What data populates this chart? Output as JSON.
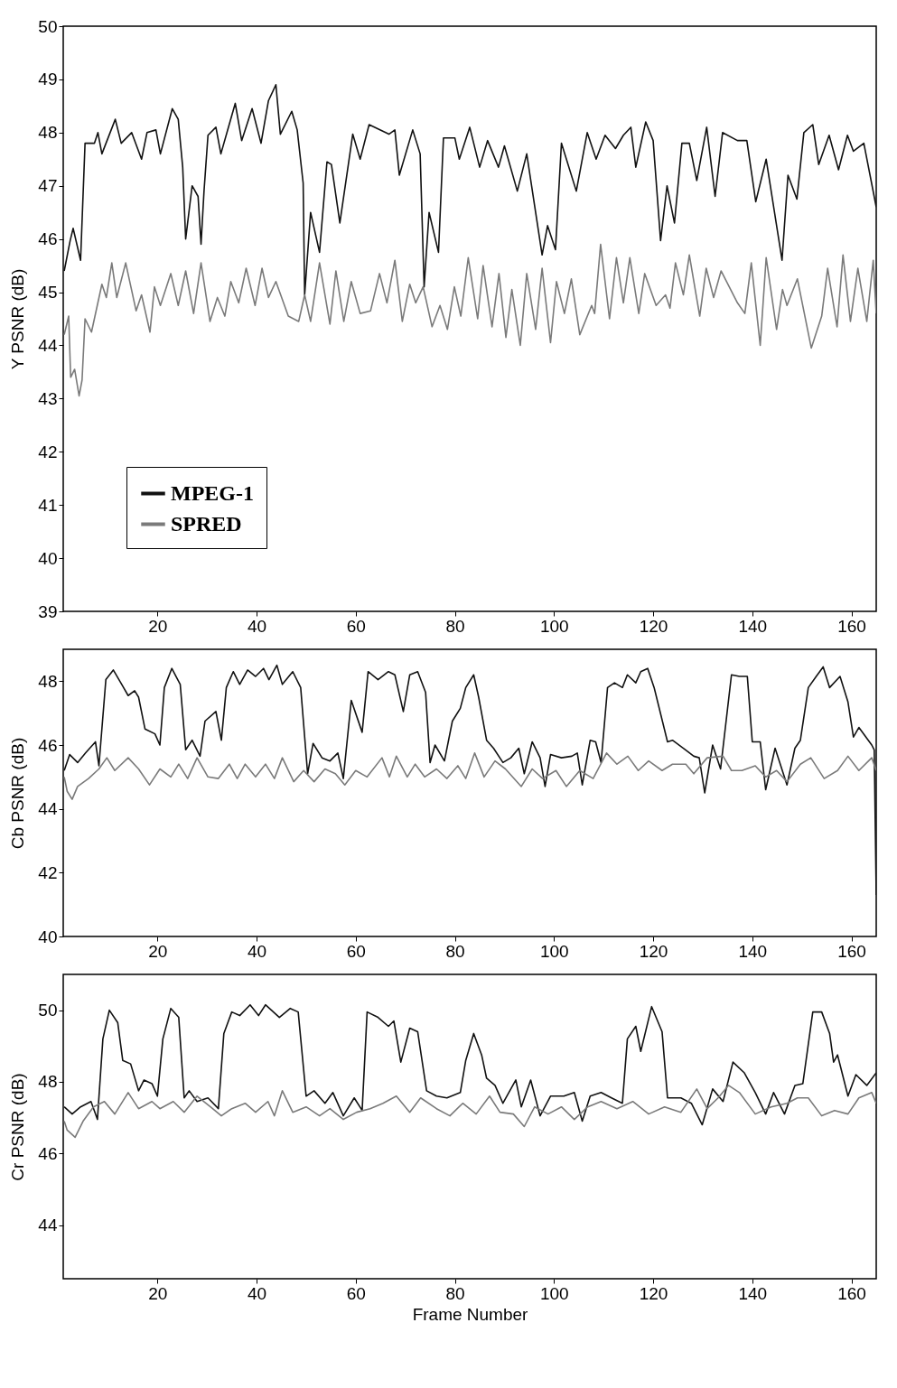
{
  "chart_data": [
    {
      "type": "line",
      "ylabel": "Y PSNR (dB)",
      "xlim": [
        1,
        165
      ],
      "xticks": [
        20,
        40,
        60,
        80,
        100,
        120,
        140,
        160
      ],
      "ylim": [
        39,
        50
      ],
      "yticks": [
        39,
        40,
        41,
        42,
        43,
        44,
        45,
        46,
        47,
        48,
        49,
        50
      ],
      "grid": false,
      "legend": "bottom left",
      "series": [
        {
          "name": "MPEG-1",
          "color": "#111111",
          "x": [
            1.2,
            2.4,
            3,
            4.5,
            5.4,
            7.3,
            8,
            8.8,
            11.5,
            12.7,
            14.8,
            16.8,
            17.9,
            19.7,
            20.6,
            23,
            24.2,
            25.1,
            25.7,
            27,
            28.2,
            28.8,
            29.4,
            30.2,
            31.8,
            32.8,
            35.7,
            37,
            39.1,
            40.9,
            42.4,
            43.9,
            44.8,
            47.1,
            48.2,
            49.4,
            49.7,
            50.9,
            52.7,
            54.2,
            55.1,
            56.8,
            59.4,
            60.9,
            62.7,
            66.7,
            67.9,
            68.8,
            71.5,
            73,
            73.8,
            74.8,
            76.7,
            77.7,
            80,
            80.9,
            83,
            85,
            86.6,
            88.8,
            90,
            92.6,
            94.5,
            97.6,
            98.7,
            100.3,
            101.5,
            104.5,
            106.7,
            108.5,
            110.3,
            112.4,
            114,
            115.5,
            116.5,
            118.5,
            120,
            121.5,
            122.8,
            124.3,
            125.8,
            127.3,
            128.8,
            130.8,
            132.5,
            134,
            137,
            138.9,
            140.7,
            142.8,
            146,
            147.2,
            149,
            150.4,
            152.2,
            153.4,
            155.5,
            157.4,
            159.2,
            160.4,
            162.5,
            165
          ],
          "values": [
            45.4,
            45.97,
            46.2,
            45.6,
            47.8,
            47.8,
            48.0,
            47.6,
            48.25,
            47.8,
            48.0,
            47.5,
            48.0,
            48.05,
            47.6,
            48.45,
            48.25,
            47.35,
            46.0,
            47.0,
            46.8,
            45.9,
            46.9,
            47.95,
            48.1,
            47.6,
            48.55,
            47.85,
            48.45,
            47.8,
            48.6,
            48.9,
            47.97,
            48.4,
            48.05,
            47.05,
            44.95,
            46.5,
            45.75,
            47.45,
            47.4,
            46.3,
            47.97,
            47.5,
            48.15,
            47.97,
            48.05,
            47.2,
            48.05,
            47.6,
            45.1,
            46.5,
            45.75,
            47.9,
            47.9,
            47.5,
            48.1,
            47.35,
            47.85,
            47.35,
            47.75,
            46.9,
            47.6,
            45.7,
            46.25,
            45.8,
            47.8,
            46.9,
            48.0,
            47.5,
            47.95,
            47.7,
            47.95,
            48.1,
            47.35,
            48.2,
            47.85,
            45.97,
            47.0,
            46.3,
            47.8,
            47.8,
            47.1,
            48.1,
            46.8,
            48.0,
            47.85,
            47.85,
            46.7,
            47.5,
            45.6,
            47.2,
            46.75,
            48.0,
            48.15,
            47.4,
            47.95,
            47.3,
            47.95,
            47.65,
            47.8,
            46.6
          ]
        },
        {
          "name": "SPRED",
          "color": "#7a7a7a",
          "x": [
            1.2,
            2.1,
            2.5,
            3.3,
            4.2,
            4.8,
            5.4,
            6.7,
            8.8,
            9.7,
            10.8,
            11.8,
            13.6,
            15.7,
            16.8,
            18.5,
            19.4,
            20.6,
            22.7,
            24.2,
            25.7,
            27.3,
            28.8,
            30.6,
            32.1,
            33.6,
            34.8,
            36.4,
            37.9,
            39.7,
            41.1,
            42.4,
            43.9,
            46.4,
            48.5,
            49.7,
            50.9,
            52.7,
            54.8,
            56,
            57.6,
            59.1,
            60.9,
            63,
            64.8,
            66.3,
            67.9,
            69.4,
            70.9,
            72.1,
            73.6,
            75.4,
            77,
            78.5,
            79.9,
            81.2,
            82.7,
            84.6,
            85.7,
            87.5,
            88.9,
            90.3,
            91.5,
            93.2,
            94.5,
            96.3,
            97.6,
            99.3,
            100.5,
            102.1,
            103.5,
            105.2,
            107.6,
            108.2,
            109.4,
            111.2,
            112.6,
            114,
            115.3,
            117.1,
            118.3,
            120.6,
            122.5,
            123.4,
            124.5,
            126.1,
            127.3,
            129.4,
            130.7,
            132.2,
            133.7,
            137,
            138.5,
            139.8,
            141.6,
            142.8,
            144.9,
            146.1,
            147,
            149.1,
            151.9,
            154,
            155.2,
            157.1,
            158.3,
            159.8,
            161.3,
            163.1,
            164.4,
            165
          ],
          "values": [
            44.2,
            44.55,
            43.4,
            43.55,
            43.05,
            43.35,
            44.5,
            44.25,
            45.15,
            44.9,
            45.55,
            44.9,
            45.55,
            44.65,
            44.95,
            44.25,
            45.1,
            44.75,
            45.35,
            44.75,
            45.4,
            44.6,
            45.55,
            44.45,
            44.9,
            44.55,
            45.2,
            44.8,
            45.45,
            44.75,
            45.45,
            44.9,
            45.2,
            44.55,
            44.45,
            44.95,
            44.45,
            45.55,
            44.4,
            45.4,
            44.45,
            45.2,
            44.6,
            44.65,
            45.35,
            44.8,
            45.6,
            44.45,
            45.15,
            44.8,
            45.1,
            44.35,
            44.75,
            44.3,
            45.1,
            44.55,
            45.65,
            44.5,
            45.5,
            44.35,
            45.35,
            44.15,
            45.05,
            44.0,
            45.35,
            44.3,
            45.45,
            44.05,
            45.2,
            44.6,
            45.25,
            44.2,
            44.75,
            44.6,
            45.9,
            44.5,
            45.65,
            44.8,
            45.65,
            44.6,
            45.35,
            44.75,
            44.95,
            44.7,
            45.55,
            44.95,
            45.7,
            44.55,
            45.45,
            44.9,
            45.4,
            44.8,
            44.6,
            45.55,
            44.0,
            45.65,
            44.3,
            45.05,
            44.75,
            45.25,
            43.95,
            44.55,
            45.45,
            44.35,
            45.7,
            44.45,
            45.45,
            44.45,
            45.6,
            44.6
          ]
        }
      ]
    },
    {
      "type": "line",
      "ylabel": "Cb PSNR (dB)",
      "xlim": [
        1,
        165
      ],
      "xticks": [
        20,
        40,
        60,
        80,
        100,
        120,
        140,
        160
      ],
      "ylim": [
        40,
        49
      ],
      "yticks": [
        40,
        42,
        44,
        46,
        48
      ],
      "grid": false,
      "series": [
        {
          "color": "#111111",
          "x": [
            1.2,
            2.3,
            3.9,
            5.5,
            7.5,
            8.2,
            9.6,
            11.1,
            12.8,
            14.1,
            15.4,
            16.2,
            17.5,
            19.5,
            20.5,
            21.4,
            22.9,
            24.6,
            25.7,
            27,
            28.6,
            29.6,
            31.8,
            32.9,
            33.9,
            35.3,
            36.6,
            38.2,
            39.8,
            41.4,
            42.5,
            44.1,
            45.2,
            47.3,
            48.9,
            50.3,
            51.4,
            53.2,
            54.8,
            56.4,
            57.5,
            59.1,
            61.3,
            62.5,
            64.5,
            66.6,
            67.9,
            69.6,
            70.9,
            72.5,
            74.1,
            75,
            76,
            77.9,
            79.5,
            81.1,
            82.2,
            83.8,
            84.8,
            86.4,
            87.8,
            89.7,
            91.3,
            92.9,
            94,
            95.6,
            97.2,
            98.2,
            99.3,
            101.5,
            103.6,
            104.7,
            105.7,
            107.3,
            108.4,
            109.5,
            110.8,
            112.2,
            113.8,
            114.8,
            116.5,
            117.5,
            118.9,
            120.2,
            122.9,
            123.9,
            126.1,
            128.2,
            129.3,
            130.4,
            132,
            133.6,
            135.8,
            137.4,
            139,
            140,
            141.6,
            142.7,
            144.6,
            147,
            148.6,
            149.7,
            151.3,
            152.9,
            154.3,
            155.6,
            157.7,
            159.3,
            160.4,
            161.5,
            164.1,
            164.6,
            165
          ],
          "values": [
            45.2,
            45.7,
            45.45,
            45.75,
            46.1,
            45.35,
            48.05,
            48.35,
            47.9,
            47.55,
            47.7,
            47.5,
            46.5,
            46.35,
            46.0,
            47.8,
            48.4,
            47.9,
            45.85,
            46.15,
            45.65,
            46.75,
            47.05,
            46.15,
            47.8,
            48.3,
            47.9,
            48.35,
            48.15,
            48.4,
            48.05,
            48.5,
            47.9,
            48.3,
            47.8,
            45.1,
            46.05,
            45.6,
            45.5,
            45.75,
            44.95,
            47.4,
            46.4,
            48.3,
            48.05,
            48.3,
            48.2,
            47.05,
            48.2,
            48.3,
            47.65,
            45.45,
            46.0,
            45.5,
            46.75,
            47.15,
            47.8,
            48.2,
            47.5,
            46.15,
            45.9,
            45.45,
            45.6,
            45.9,
            45.1,
            46.1,
            45.6,
            44.7,
            45.7,
            45.6,
            45.65,
            45.75,
            44.75,
            46.15,
            46.1,
            45.45,
            47.8,
            47.95,
            47.8,
            48.2,
            47.95,
            48.3,
            48.4,
            47.8,
            46.1,
            46.15,
            45.9,
            45.65,
            45.6,
            44.5,
            46.0,
            45.25,
            48.2,
            48.15,
            48.15,
            46.1,
            46.1,
            44.6,
            45.9,
            44.75,
            45.9,
            46.15,
            47.8,
            48.15,
            48.45,
            47.8,
            48.15,
            47.35,
            46.25,
            46.55,
            46.0,
            45.85,
            41.3
          ]
        },
        {
          "color": "#7a7a7a",
          "x": [
            1.2,
            1.8,
            2.8,
            3.9,
            6.1,
            8.2,
            9.8,
            11.4,
            14.1,
            16.2,
            18.4,
            20.5,
            22.7,
            24.3,
            26.1,
            28,
            30.2,
            32.3,
            34.5,
            36.1,
            37.7,
            39.8,
            41.8,
            43.6,
            45.2,
            47.5,
            49.5,
            51.6,
            53.8,
            55.9,
            57.8,
            60,
            62.3,
            65.3,
            66.8,
            68.2,
            70.4,
            72,
            73.9,
            76.3,
            78.4,
            80.6,
            82.2,
            84,
            85.9,
            88.1,
            90.2,
            93.4,
            95.6,
            97.7,
            100.4,
            102.5,
            105.2,
            107.9,
            110.6,
            112.7,
            114.9,
            117,
            119.1,
            121.8,
            123.9,
            126.6,
            128.2,
            130.9,
            134.1,
            135.8,
            137.9,
            140.6,
            142.7,
            144.9,
            147,
            149.7,
            151.8,
            154.5,
            157.2,
            159.3,
            161.5,
            164.1,
            165
          ],
          "values": [
            45.0,
            44.55,
            44.3,
            44.7,
            44.95,
            45.25,
            45.6,
            45.2,
            45.6,
            45.25,
            44.75,
            45.25,
            45.0,
            45.4,
            44.95,
            45.6,
            45.0,
            44.95,
            45.4,
            44.95,
            45.4,
            45.0,
            45.4,
            44.95,
            45.6,
            44.85,
            45.2,
            44.85,
            45.25,
            45.1,
            44.75,
            45.2,
            45.0,
            45.6,
            45.0,
            45.65,
            45.0,
            45.4,
            45.0,
            45.25,
            44.95,
            45.35,
            44.95,
            45.75,
            45.0,
            45.5,
            45.25,
            44.7,
            45.25,
            44.95,
            45.2,
            44.7,
            45.2,
            44.95,
            45.75,
            45.4,
            45.65,
            45.2,
            45.5,
            45.2,
            45.4,
            45.4,
            45.1,
            45.6,
            45.65,
            45.2,
            45.2,
            45.35,
            45.0,
            45.2,
            44.85,
            45.4,
            45.6,
            44.95,
            45.2,
            45.65,
            45.2,
            45.6,
            45.2
          ]
        }
      ]
    },
    {
      "type": "line",
      "ylabel": "Cr PSNR (dB)",
      "xlabel": "Frame Number",
      "xlim": [
        1,
        165
      ],
      "xticks": [
        20,
        40,
        60,
        80,
        100,
        120,
        140,
        160
      ],
      "ylim": [
        42.5,
        51
      ],
      "yticks": [
        44,
        46,
        48,
        50
      ],
      "grid": false,
      "series": [
        {
          "color": "#111111",
          "x": [
            1.2,
            2.8,
            4.5,
            6.6,
            7.9,
            9,
            10.3,
            12,
            13,
            14.6,
            16.2,
            17.3,
            18.9,
            20,
            21.1,
            22.7,
            24.3,
            25.4,
            26.4,
            28,
            30.2,
            32.3,
            33.4,
            35,
            36.6,
            38.7,
            40.4,
            41.8,
            43,
            44.6,
            46.8,
            48.4,
            50,
            51.6,
            53.8,
            55.4,
            57.5,
            59.7,
            61.3,
            62.3,
            64.5,
            66.6,
            67.7,
            69.1,
            70.9,
            72.5,
            74.3,
            76.3,
            78.4,
            81.1,
            82.2,
            83.8,
            85.4,
            86.4,
            88.1,
            89.7,
            92.3,
            93.4,
            95.3,
            97.2,
            99.3,
            102,
            104.1,
            105.7,
            107.3,
            109.5,
            111.6,
            113.8,
            114.8,
            116.5,
            117.5,
            119.7,
            121.8,
            122.9,
            125.6,
            127.7,
            129.9,
            132,
            134.1,
            136.1,
            138.4,
            140.6,
            142.7,
            144.3,
            146.5,
            148.6,
            150.2,
            152.2,
            154,
            155.6,
            156.4,
            157.2,
            159.3,
            160.9,
            163.1,
            165
          ],
          "values": [
            47.3,
            47.1,
            47.3,
            47.45,
            46.95,
            49.2,
            50.0,
            49.65,
            48.6,
            48.5,
            47.75,
            48.05,
            47.95,
            47.6,
            49.2,
            50.05,
            49.8,
            47.55,
            47.75,
            47.45,
            47.55,
            47.25,
            49.35,
            49.95,
            49.85,
            50.15,
            49.85,
            50.15,
            50.0,
            49.8,
            50.05,
            49.95,
            47.6,
            47.75,
            47.4,
            47.7,
            47.05,
            47.55,
            47.2,
            49.95,
            49.8,
            49.55,
            49.7,
            48.55,
            49.5,
            49.4,
            47.75,
            47.6,
            47.55,
            47.7,
            48.6,
            49.35,
            48.75,
            48.1,
            47.9,
            47.4,
            48.05,
            47.3,
            48.05,
            47.05,
            47.6,
            47.6,
            47.7,
            46.9,
            47.6,
            47.7,
            47.55,
            47.4,
            49.2,
            49.55,
            48.85,
            50.1,
            49.4,
            47.55,
            47.55,
            47.4,
            46.8,
            47.8,
            47.45,
            48.55,
            48.25,
            47.7,
            47.1,
            47.7,
            47.1,
            47.9,
            47.95,
            49.95,
            49.95,
            49.35,
            48.55,
            48.75,
            47.6,
            48.2,
            47.9,
            48.25
          ]
        },
        {
          "color": "#7a7a7a",
          "x": [
            1.2,
            1.8,
            3.4,
            5,
            7.1,
            9.3,
            11.4,
            14.1,
            16.2,
            18.9,
            20.5,
            23.2,
            25.4,
            28,
            30.7,
            32.9,
            35,
            37.7,
            39.8,
            42.3,
            43.6,
            45.2,
            47.3,
            50,
            52.7,
            54.8,
            57.5,
            60.2,
            62.9,
            65.5,
            68.2,
            70.9,
            73.1,
            76.3,
            79,
            81.6,
            84.3,
            87,
            89.1,
            91.8,
            94,
            96.1,
            98.8,
            101.5,
            104.1,
            106.8,
            109.5,
            112.7,
            115.9,
            119.1,
            122.3,
            125.6,
            128.8,
            130.9,
            133.1,
            135.2,
            137.4,
            140.6,
            143.8,
            147,
            149.1,
            151.3,
            154,
            156.6,
            159.3,
            161.5,
            164.1,
            165
          ],
          "values": [
            46.9,
            46.65,
            46.45,
            46.9,
            47.3,
            47.45,
            47.1,
            47.7,
            47.25,
            47.45,
            47.25,
            47.45,
            47.15,
            47.6,
            47.3,
            47.05,
            47.25,
            47.4,
            47.15,
            47.45,
            47.05,
            47.75,
            47.15,
            47.3,
            47.05,
            47.25,
            46.95,
            47.15,
            47.25,
            47.4,
            47.6,
            47.15,
            47.55,
            47.25,
            47.05,
            47.4,
            47.1,
            47.6,
            47.15,
            47.1,
            46.75,
            47.3,
            47.1,
            47.3,
            46.95,
            47.3,
            47.45,
            47.25,
            47.45,
            47.1,
            47.3,
            47.15,
            47.8,
            47.25,
            47.55,
            47.9,
            47.7,
            47.1,
            47.3,
            47.4,
            47.55,
            47.55,
            47.05,
            47.2,
            47.1,
            47.55,
            47.7,
            47.4
          ]
        }
      ]
    }
  ]
}
